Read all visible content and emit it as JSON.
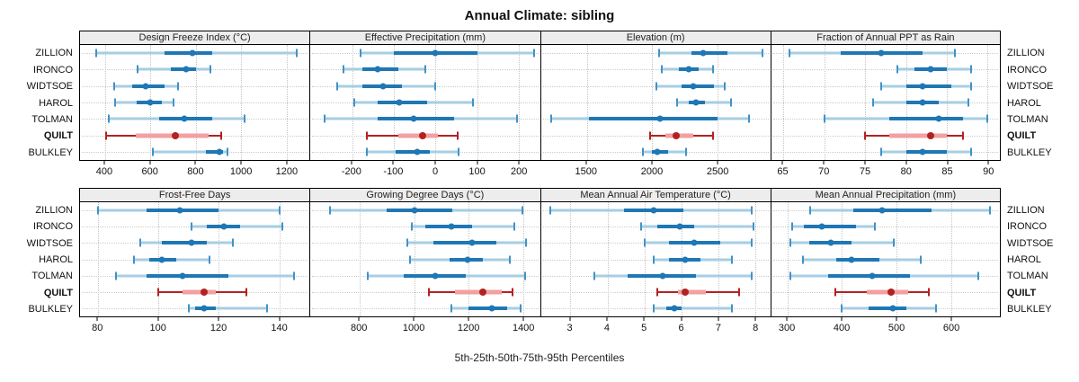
{
  "chart_data": {
    "type": "dot-interval",
    "title": "Annual Climate: sibling",
    "caption": "5th-25th-50th-75th-95th Percentiles",
    "percentile_levels": [
      5,
      25,
      50,
      75,
      95
    ],
    "categories": [
      "ZILLION",
      "IRONCO",
      "WIDTSOE",
      "HAROL",
      "TOLMAN",
      "QUILT",
      "BULKLEY"
    ],
    "highlight_category": "QUILT",
    "grid_layout": {
      "rows": 2,
      "cols": 4,
      "row_labels_on": "both sides",
      "grid": "dotted"
    },
    "panels": [
      {
        "title": "Design Freeze Index (°C)",
        "xlim": [
          290,
          1300
        ],
        "xticks": [
          400,
          600,
          800,
          1000,
          1200
        ],
        "rows": [
          {
            "name": "ZILLION",
            "values": [
              360,
              660,
              785,
              870,
              1245
            ]
          },
          {
            "name": "IRONCO",
            "values": [
              545,
              690,
              755,
              800,
              865
            ]
          },
          {
            "name": "WIDTSOE",
            "values": [
              440,
              520,
              580,
              660,
              720
            ]
          },
          {
            "name": "HAROL",
            "values": [
              445,
              540,
              600,
              650,
              700
            ]
          },
          {
            "name": "TOLMAN",
            "values": [
              415,
              640,
              750,
              870,
              1015
            ]
          },
          {
            "name": "QUILT",
            "values": [
              405,
              535,
              710,
              855,
              910
            ]
          },
          {
            "name": "BULKLEY",
            "values": [
              610,
              845,
              905,
              920,
              940
            ]
          }
        ]
      },
      {
        "title": "Effective Precipitation (mm)",
        "xlim": [
          -300,
          250
        ],
        "xticks": [
          -200,
          -100,
          0,
          100,
          200
        ],
        "rows": [
          {
            "name": "ZILLION",
            "values": [
              -180,
              -100,
              0,
              100,
              235
            ]
          },
          {
            "name": "IRONCO",
            "values": [
              -220,
              -175,
              -140,
              -90,
              -25
            ]
          },
          {
            "name": "WIDTSOE",
            "values": [
              -235,
              -175,
              -125,
              -80,
              0
            ]
          },
          {
            "name": "HAROL",
            "values": [
              -195,
              -140,
              -88,
              -20,
              90
            ]
          },
          {
            "name": "TOLMAN",
            "values": [
              -265,
              -140,
              -52,
              45,
              195
            ]
          },
          {
            "name": "QUILT",
            "values": [
              -165,
              -90,
              -32,
              5,
              52
            ]
          },
          {
            "name": "BULKLEY",
            "values": [
              -165,
              -95,
              -45,
              -15,
              55
            ]
          }
        ]
      },
      {
        "title": "Elevation (m)",
        "xlim": [
          1150,
          2900
        ],
        "xticks": [
          1500,
          2000,
          2500
        ],
        "rows": [
          {
            "name": "ZILLION",
            "values": [
              2050,
              2300,
              2390,
              2570,
              2840
            ]
          },
          {
            "name": "IRONCO",
            "values": [
              2070,
              2200,
              2280,
              2350,
              2460
            ]
          },
          {
            "name": "WIDTSOE",
            "values": [
              2030,
              2220,
              2310,
              2470,
              2550
            ]
          },
          {
            "name": "HAROL",
            "values": [
              2190,
              2280,
              2330,
              2400,
              2600
            ]
          },
          {
            "name": "TOLMAN",
            "values": [
              1230,
              1520,
              2060,
              2500,
              2740
            ]
          },
          {
            "name": "QUILT",
            "values": [
              1980,
              2100,
              2180,
              2310,
              2460
            ]
          },
          {
            "name": "BULKLEY",
            "values": [
              1930,
              2000,
              2040,
              2120,
              2260
            ]
          }
        ]
      },
      {
        "title": "Fraction of Annual PPT as Rain",
        "xlim": [
          63.5,
          91.5
        ],
        "xticks": [
          65,
          70,
          75,
          80,
          85,
          90
        ],
        "rows": [
          {
            "name": "ZILLION",
            "values": [
              65.7,
              72,
              77,
              82,
              86
            ]
          },
          {
            "name": "IRONCO",
            "values": [
              79,
              81,
              83,
              85,
              88
            ]
          },
          {
            "name": "WIDTSOE",
            "values": [
              77,
              80,
              82,
              85.5,
              88
            ]
          },
          {
            "name": "HAROL",
            "values": [
              76,
              80,
              82,
              84,
              87.7
            ]
          },
          {
            "name": "TOLMAN",
            "values": [
              70,
              78,
              84,
              87,
              90
            ]
          },
          {
            "name": "QUILT",
            "values": [
              75,
              78,
              83,
              85,
              87
            ]
          },
          {
            "name": "BULKLEY",
            "values": [
              77,
              80,
              82,
              85,
              88
            ]
          }
        ]
      },
      {
        "title": "Frost-Free Days",
        "xlim": [
          74,
          150
        ],
        "xticks": [
          80,
          100,
          120,
          140
        ],
        "rows": [
          {
            "name": "ZILLION",
            "values": [
              80,
              96,
              107,
              120,
              140
            ]
          },
          {
            "name": "IRONCO",
            "values": [
              111,
              116,
              121.5,
              127,
              141
            ]
          },
          {
            "name": "WIDTSOE",
            "values": [
              94,
              101,
              111,
              116,
              124.5
            ]
          },
          {
            "name": "HAROL",
            "values": [
              92,
              97,
              101,
              106,
              117
            ]
          },
          {
            "name": "TOLMAN",
            "values": [
              86,
              96,
              108,
              123,
              145
            ]
          },
          {
            "name": "QUILT",
            "values": [
              100,
              108,
              115,
              119,
              129
            ]
          },
          {
            "name": "BULKLEY",
            "values": [
              110,
              112,
              115,
              119,
              136
            ]
          }
        ]
      },
      {
        "title": "Growing Degree Days (°C)",
        "xlim": [
          620,
          1460
        ],
        "xticks": [
          800,
          1000,
          1200,
          1400
        ],
        "rows": [
          {
            "name": "ZILLION",
            "values": [
              690,
              900,
              1000,
              1140,
              1395
            ]
          },
          {
            "name": "IRONCO",
            "values": [
              990,
              1040,
              1135,
              1210,
              1365
            ]
          },
          {
            "name": "WIDTSOE",
            "values": [
              975,
              1070,
              1210,
              1300,
              1410
            ]
          },
          {
            "name": "HAROL",
            "values": [
              985,
              1130,
              1195,
              1250,
              1350
            ]
          },
          {
            "name": "TOLMAN",
            "values": [
              830,
              960,
              1075,
              1190,
              1405
            ]
          },
          {
            "name": "QUILT",
            "values": [
              1055,
              1150,
              1250,
              1320,
              1360
            ]
          },
          {
            "name": "BULKLEY",
            "values": [
              1135,
              1200,
              1285,
              1340,
              1390
            ]
          }
        ]
      },
      {
        "title": "Mean Annual Air Temperature (°C)",
        "xlim": [
          2.2,
          8.4
        ],
        "xticks": [
          3,
          4,
          5,
          6,
          7,
          8
        ],
        "rows": [
          {
            "name": "ZILLION",
            "values": [
              2.45,
              4.45,
              5.25,
              6.05,
              7.9
            ]
          },
          {
            "name": "IRONCO",
            "values": [
              4.9,
              5.35,
              5.95,
              6.35,
              7.95
            ]
          },
          {
            "name": "WIDTSOE",
            "values": [
              5.0,
              5.65,
              6.35,
              7.05,
              7.9
            ]
          },
          {
            "name": "HAROL",
            "values": [
              5.25,
              5.65,
              6.1,
              6.5,
              7.35
            ]
          },
          {
            "name": "TOLMAN",
            "values": [
              3.65,
              4.55,
              5.5,
              6.4,
              7.9
            ]
          },
          {
            "name": "QUILT",
            "values": [
              5.35,
              5.9,
              6.1,
              6.65,
              7.55
            ]
          },
          {
            "name": "BULKLEY",
            "values": [
              5.25,
              5.6,
              5.8,
              6.0,
              7.35
            ]
          }
        ]
      },
      {
        "title": "Mean Annual Precipitation (mm)",
        "xlim": [
          270,
          690
        ],
        "xticks": [
          300,
          400,
          500,
          600
        ],
        "rows": [
          {
            "name": "ZILLION",
            "values": [
              342,
              420,
              473,
              565,
              672
            ]
          },
          {
            "name": "IRONCO",
            "values": [
              308,
              330,
              363,
              425,
              460
            ]
          },
          {
            "name": "WIDTSOE",
            "values": [
              305,
              340,
              380,
              418,
              495
            ]
          },
          {
            "name": "HAROL",
            "values": [
              328,
              390,
              417,
              468,
              545
            ]
          },
          {
            "name": "TOLMAN",
            "values": [
              305,
              375,
              455,
              525,
              650
            ]
          },
          {
            "name": "QUILT",
            "values": [
              388,
              445,
              490,
              522,
              560
            ]
          },
          {
            "name": "BULKLEY",
            "values": [
              400,
              448,
              493,
              518,
              573
            ]
          }
        ]
      }
    ]
  },
  "colors": {
    "blue_dark": "#1f77b4",
    "blue_light": "#a6cee3",
    "blue_cap": "#4292c6",
    "red_dark": "#b22222",
    "red_light": "#f2a0a0",
    "header_bg": "#ededed",
    "panel_border": "#000000",
    "grid_dotted": "#c8c8c8"
  }
}
